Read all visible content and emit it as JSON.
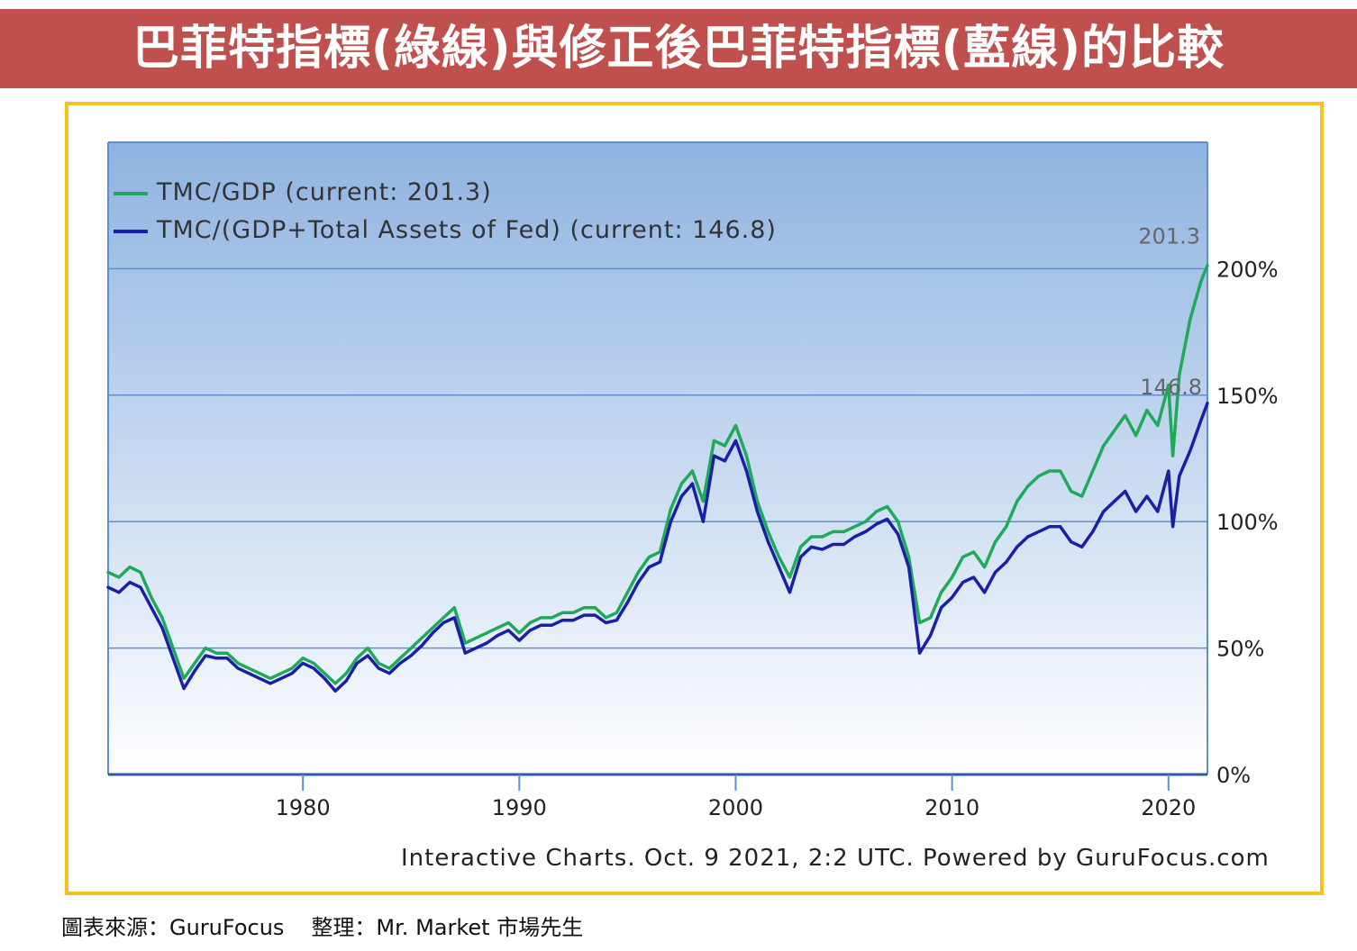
{
  "title": "巴菲特指標(綠線)與修正後巴菲特指標(藍線)的比較",
  "source_text": "圖表來源：GuruFocus",
  "editor_text": "整理：Mr. Market 市場先生",
  "credit": "Interactive Charts. Oct. 9 2021, 2:2 UTC. Powered by GuruFocus.com",
  "colors": {
    "banner": "#c0504d",
    "frame": "#f7c21b",
    "green": "#1faa5a",
    "blue": "#1a1fa8",
    "plot_top": "#8fb3e1",
    "plot_bottom": "#ffffff",
    "gridline": "#5b8fd6"
  },
  "chart_data": {
    "type": "line",
    "x_ticks": [
      1980,
      1990,
      2000,
      2010,
      2020
    ],
    "y_ticks": [
      "0%",
      "50%",
      "100%",
      "150%",
      "200%"
    ],
    "xlim": [
      1971,
      2021.8
    ],
    "ylim": [
      0,
      250
    ],
    "grid": true,
    "legend_position": "top-left",
    "end_labels": {
      "green": "201.3",
      "blue": "146.8"
    },
    "series": [
      {
        "name": "TMC/GDP (current: 201.3)",
        "color": "#1faa5a",
        "x": [
          1971,
          1971.5,
          1972,
          1972.5,
          1973,
          1973.5,
          1974,
          1974.5,
          1975,
          1975.5,
          1976,
          1976.5,
          1977,
          1977.5,
          1978,
          1978.5,
          1979,
          1979.5,
          1980,
          1980.5,
          1981,
          1981.5,
          1982,
          1982.5,
          1983,
          1983.5,
          1984,
          1984.5,
          1985,
          1985.5,
          1986,
          1986.5,
          1987,
          1987.5,
          1988,
          1988.5,
          1989,
          1989.5,
          1990,
          1990.5,
          1991,
          1991.5,
          1992,
          1992.5,
          1993,
          1993.5,
          1994,
          1994.5,
          1995,
          1995.5,
          1996,
          1996.5,
          1997,
          1997.5,
          1998,
          1998.5,
          1999,
          1999.5,
          2000,
          2000.5,
          2001,
          2001.5,
          2002,
          2002.5,
          2003,
          2003.5,
          2004,
          2004.5,
          2005,
          2005.5,
          2006,
          2006.5,
          2007,
          2007.5,
          2008,
          2008.5,
          2009,
          2009.5,
          2010,
          2010.5,
          2011,
          2011.5,
          2012,
          2012.5,
          2013,
          2013.5,
          2014,
          2014.5,
          2015,
          2015.5,
          2016,
          2016.5,
          2017,
          2017.5,
          2018,
          2018.5,
          2019,
          2019.5,
          2020,
          2020.2,
          2020.5,
          2021,
          2021.5,
          2021.8
        ],
        "values": [
          80,
          78,
          82,
          80,
          70,
          62,
          50,
          38,
          44,
          50,
          48,
          48,
          44,
          42,
          40,
          38,
          40,
          42,
          46,
          44,
          40,
          36,
          40,
          46,
          50,
          44,
          42,
          46,
          50,
          54,
          58,
          62,
          66,
          52,
          54,
          56,
          58,
          60,
          56,
          60,
          62,
          62,
          64,
          64,
          66,
          66,
          62,
          64,
          72,
          80,
          86,
          88,
          105,
          115,
          120,
          108,
          132,
          130,
          138,
          126,
          108,
          96,
          86,
          78,
          90,
          94,
          94,
          96,
          96,
          98,
          100,
          104,
          106,
          100,
          86,
          60,
          62,
          72,
          78,
          86,
          88,
          82,
          92,
          98,
          108,
          114,
          118,
          120,
          120,
          112,
          110,
          120,
          130,
          136,
          142,
          134,
          144,
          138,
          154,
          126,
          158,
          180,
          195,
          201.3
        ]
      },
      {
        "name": "TMC/(GDP+Total Assets of Fed) (current: 146.8)",
        "color": "#1a1fa8",
        "x": [
          1971,
          1971.5,
          1972,
          1972.5,
          1973,
          1973.5,
          1974,
          1974.5,
          1975,
          1975.5,
          1976,
          1976.5,
          1977,
          1977.5,
          1978,
          1978.5,
          1979,
          1979.5,
          1980,
          1980.5,
          1981,
          1981.5,
          1982,
          1982.5,
          1983,
          1983.5,
          1984,
          1984.5,
          1985,
          1985.5,
          1986,
          1986.5,
          1987,
          1987.5,
          1988,
          1988.5,
          1989,
          1989.5,
          1990,
          1990.5,
          1991,
          1991.5,
          1992,
          1992.5,
          1993,
          1993.5,
          1994,
          1994.5,
          1995,
          1995.5,
          1996,
          1996.5,
          1997,
          1997.5,
          1998,
          1998.5,
          1999,
          1999.5,
          2000,
          2000.5,
          2001,
          2001.5,
          2002,
          2002.5,
          2003,
          2003.5,
          2004,
          2004.5,
          2005,
          2005.5,
          2006,
          2006.5,
          2007,
          2007.5,
          2008,
          2008.5,
          2009,
          2009.5,
          2010,
          2010.5,
          2011,
          2011.5,
          2012,
          2012.5,
          2013,
          2013.5,
          2014,
          2014.5,
          2015,
          2015.5,
          2016,
          2016.5,
          2017,
          2017.5,
          2018,
          2018.5,
          2019,
          2019.5,
          2020,
          2020.2,
          2020.5,
          2021,
          2021.5,
          2021.8
        ],
        "values": [
          74,
          72,
          76,
          74,
          66,
          58,
          46,
          34,
          41,
          47,
          46,
          46,
          42,
          40,
          38,
          36,
          38,
          40,
          44,
          42,
          38,
          33,
          37,
          44,
          47,
          42,
          40,
          44,
          47,
          51,
          56,
          60,
          62,
          48,
          50,
          52,
          55,
          57,
          53,
          57,
          59,
          59,
          61,
          61,
          63,
          63,
          60,
          61,
          68,
          76,
          82,
          84,
          100,
          110,
          115,
          100,
          126,
          124,
          132,
          120,
          104,
          92,
          82,
          72,
          86,
          90,
          89,
          91,
          91,
          94,
          96,
          99,
          101,
          95,
          82,
          48,
          55,
          66,
          70,
          76,
          78,
          72,
          80,
          84,
          90,
          94,
          96,
          98,
          98,
          92,
          90,
          96,
          104,
          108,
          112,
          104,
          110,
          104,
          120,
          98,
          118,
          128,
          140,
          146.8
        ]
      }
    ]
  }
}
